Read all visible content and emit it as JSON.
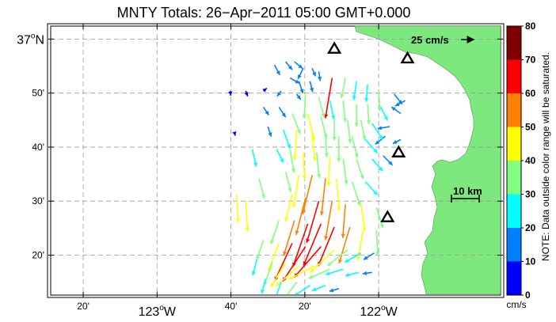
{
  "chart_data": {
    "type": "vector-field map",
    "title": "MNTY Totals: 26−Apr−2011 05:00 GMT+0.000",
    "x_ticks": [
      {
        "lon": -123.3333,
        "label": "20'",
        "major": false
      },
      {
        "lon": -123.0,
        "label": "123",
        "major": true
      },
      {
        "lon": -122.6667,
        "label": "40'",
        "major": false
      },
      {
        "lon": -122.3333,
        "label": "20'",
        "major": false
      },
      {
        "lon": -122.0,
        "label": "122",
        "major": true
      }
    ],
    "y_ticks": [
      {
        "lat": 37.0,
        "label": "37",
        "major": true
      },
      {
        "lat": 36.8333,
        "label": "50'",
        "major": false
      },
      {
        "lat": 36.6667,
        "label": "40'",
        "major": false
      },
      {
        "lat": 36.5,
        "label": "30'",
        "major": false
      },
      {
        "lat": 36.3333,
        "label": "20'",
        "major": false
      }
    ],
    "major_x_suffix": "W",
    "major_y_suffix": "N",
    "degree_symbol": "o",
    "xlim": [
      -123.48,
      -121.45
    ],
    "ylim": [
      36.21,
      37.04
    ],
    "grid": true,
    "scale_vector_label": "25 cm/s",
    "scale_vector_speed": 25,
    "distance_scale_label": "10 km",
    "distance_scale_km": 10,
    "colorbar": {
      "range": [
        0,
        80
      ],
      "ticks": [
        0,
        10,
        20,
        30,
        40,
        50,
        60,
        70,
        80
      ],
      "unit": "cm/s",
      "colors": [
        "#0000ff",
        "#0080ff",
        "#00ffff",
        "#80ff80",
        "#ffff00",
        "#ff8000",
        "#ff0000",
        "#800000"
      ],
      "note": "NOTE: Data outside color range will be saturated."
    },
    "radar_sites": [
      {
        "lon": -122.2,
        "lat": 36.97
      },
      {
        "lon": -121.87,
        "lat": 36.94
      },
      {
        "lon": -121.91,
        "lat": 36.65
      },
      {
        "lon": -121.96,
        "lat": 36.45
      }
    ],
    "vectors": [
      {
        "lon": -122.47,
        "lat": 36.92,
        "u": 8,
        "v": -15
      },
      {
        "lon": -122.42,
        "lat": 36.93,
        "u": 10,
        "v": -12
      },
      {
        "lon": -122.38,
        "lat": 36.93,
        "u": 12,
        "v": -10
      },
      {
        "lon": -122.34,
        "lat": 36.91,
        "u": -8,
        "v": -16
      },
      {
        "lon": -122.3,
        "lat": 36.91,
        "u": 5,
        "v": -12
      },
      {
        "lon": -122.27,
        "lat": 36.9,
        "u": 2,
        "v": -14
      },
      {
        "lon": -122.4,
        "lat": 36.88,
        "u": 14,
        "v": -8
      },
      {
        "lon": -122.36,
        "lat": 36.87,
        "u": 6,
        "v": -18
      },
      {
        "lon": -122.31,
        "lat": 36.87,
        "u": 4,
        "v": -16
      },
      {
        "lon": -122.21,
        "lat": 36.88,
        "u": -10,
        "v": -60
      },
      {
        "lon": -122.15,
        "lat": 36.88,
        "u": -6,
        "v": -30
      },
      {
        "lon": -122.1,
        "lat": 36.87,
        "u": -4,
        "v": -28
      },
      {
        "lon": -122.05,
        "lat": 36.86,
        "u": -2,
        "v": -26
      },
      {
        "lon": -122.0,
        "lat": 36.84,
        "u": 2,
        "v": -30
      },
      {
        "lon": -122.6,
        "lat": 36.84,
        "u": 3,
        "v": -8
      },
      {
        "lon": -122.52,
        "lat": 36.84,
        "u": 5,
        "v": 4
      },
      {
        "lon": -122.44,
        "lat": 36.84,
        "u": -6,
        "v": -8
      },
      {
        "lon": -122.37,
        "lat": 36.83,
        "u": 6,
        "v": -8
      },
      {
        "lon": -122.33,
        "lat": 36.83,
        "u": -2,
        "v": -36
      },
      {
        "lon": -122.27,
        "lat": 36.82,
        "u": 8,
        "v": -30
      },
      {
        "lon": -122.22,
        "lat": 36.81,
        "u": 6,
        "v": -28
      },
      {
        "lon": -122.16,
        "lat": 36.81,
        "u": 3,
        "v": -32
      },
      {
        "lon": -122.1,
        "lat": 36.8,
        "u": 0,
        "v": -34
      },
      {
        "lon": -122.05,
        "lat": 36.8,
        "u": 2,
        "v": -30
      },
      {
        "lon": -121.99,
        "lat": 36.79,
        "u": 10,
        "v": -20
      },
      {
        "lon": -121.93,
        "lat": 36.83,
        "u": 12,
        "v": -15
      },
      {
        "lon": -121.88,
        "lat": 36.81,
        "u": -15,
        "v": -8
      },
      {
        "lon": -121.9,
        "lat": 36.77,
        "u": -14,
        "v": 10
      },
      {
        "lon": -121.95,
        "lat": 36.73,
        "u": -18,
        "v": -3
      },
      {
        "lon": -121.9,
        "lat": 36.69,
        "u": -12,
        "v": -6
      },
      {
        "lon": -121.97,
        "lat": 36.7,
        "u": -15,
        "v": -12
      },
      {
        "lon": -122.52,
        "lat": 36.79,
        "u": 8,
        "v": -12
      },
      {
        "lon": -122.45,
        "lat": 36.79,
        "u": 10,
        "v": -15
      },
      {
        "lon": -122.39,
        "lat": 36.77,
        "u": 12,
        "v": -30
      },
      {
        "lon": -122.32,
        "lat": 36.77,
        "u": 10,
        "v": -40
      },
      {
        "lon": -122.26,
        "lat": 36.76,
        "u": 8,
        "v": -32
      },
      {
        "lon": -122.2,
        "lat": 36.76,
        "u": 0,
        "v": -35
      },
      {
        "lon": -122.14,
        "lat": 36.75,
        "u": 4,
        "v": -34
      },
      {
        "lon": -122.08,
        "lat": 36.75,
        "u": 6,
        "v": -30
      },
      {
        "lon": -122.03,
        "lat": 36.74,
        "u": 16,
        "v": -24
      },
      {
        "lon": -122.5,
        "lat": 36.73,
        "u": 5,
        "v": -15
      },
      {
        "lon": -122.43,
        "lat": 36.72,
        "u": 10,
        "v": -28
      },
      {
        "lon": -122.37,
        "lat": 36.72,
        "u": -3,
        "v": -45
      },
      {
        "lon": -122.3,
        "lat": 36.71,
        "u": 4,
        "v": -42
      },
      {
        "lon": -122.24,
        "lat": 36.71,
        "u": 2,
        "v": -36
      },
      {
        "lon": -122.18,
        "lat": 36.7,
        "u": 0,
        "v": -38
      },
      {
        "lon": -122.12,
        "lat": 36.7,
        "u": 8,
        "v": -32
      },
      {
        "lon": -122.06,
        "lat": 36.69,
        "u": 18,
        "v": -20
      },
      {
        "lon": -122.46,
        "lat": 36.66,
        "u": 10,
        "v": -20
      },
      {
        "lon": -122.4,
        "lat": 36.66,
        "u": 6,
        "v": -35
      },
      {
        "lon": -122.34,
        "lat": 36.65,
        "u": 2,
        "v": -40
      },
      {
        "lon": -122.28,
        "lat": 36.65,
        "u": 4,
        "v": -38
      },
      {
        "lon": -122.22,
        "lat": 36.64,
        "u": -2,
        "v": -45
      },
      {
        "lon": -122.16,
        "lat": 36.63,
        "u": 5,
        "v": -38
      },
      {
        "lon": -122.1,
        "lat": 36.63,
        "u": 10,
        "v": -30
      },
      {
        "lon": -122.03,
        "lat": 36.63,
        "u": 16,
        "v": -18
      },
      {
        "lon": -121.98,
        "lat": 36.64,
        "u": 14,
        "v": -14
      },
      {
        "lon": -122.64,
        "lat": 36.52,
        "u": 2,
        "v": -42
      },
      {
        "lon": -122.6,
        "lat": 36.5,
        "u": 3,
        "v": -45
      },
      {
        "lon": -122.42,
        "lat": 36.59,
        "u": 8,
        "v": -30
      },
      {
        "lon": -122.36,
        "lat": 36.58,
        "u": -8,
        "v": -48
      },
      {
        "lon": -122.3,
        "lat": 36.58,
        "u": -14,
        "v": -58
      },
      {
        "lon": -122.24,
        "lat": 36.57,
        "u": -6,
        "v": -55
      },
      {
        "lon": -122.19,
        "lat": 36.57,
        "u": 4,
        "v": -48
      },
      {
        "lon": -122.12,
        "lat": 36.56,
        "u": 12,
        "v": -36
      },
      {
        "lon": -122.06,
        "lat": 36.56,
        "u": 18,
        "v": -20
      },
      {
        "lon": -122.39,
        "lat": 36.52,
        "u": -10,
        "v": -40
      },
      {
        "lon": -122.33,
        "lat": 36.51,
        "u": -14,
        "v": -55
      },
      {
        "lon": -122.27,
        "lat": 36.5,
        "u": -18,
        "v": -62
      },
      {
        "lon": -122.21,
        "lat": 36.5,
        "u": -10,
        "v": -58
      },
      {
        "lon": -122.15,
        "lat": 36.49,
        "u": -4,
        "v": -50
      },
      {
        "lon": -122.08,
        "lat": 36.49,
        "u": 6,
        "v": -40
      },
      {
        "lon": -122.01,
        "lat": 36.48,
        "u": 10,
        "v": -30
      },
      {
        "lon": -122.45,
        "lat": 36.44,
        "u": -12,
        "v": -35
      },
      {
        "lon": -122.38,
        "lat": 36.44,
        "u": -16,
        "v": -52
      },
      {
        "lon": -122.32,
        "lat": 36.43,
        "u": -22,
        "v": -64
      },
      {
        "lon": -122.26,
        "lat": 36.43,
        "u": -26,
        "v": -62
      },
      {
        "lon": -122.2,
        "lat": 36.42,
        "u": -24,
        "v": -58
      },
      {
        "lon": -122.13,
        "lat": 36.42,
        "u": -16,
        "v": -54
      },
      {
        "lon": -122.07,
        "lat": 36.41,
        "u": -8,
        "v": -45
      },
      {
        "lon": -122.01,
        "lat": 36.41,
        "u": 2,
        "v": -38
      },
      {
        "lon": -122.52,
        "lat": 36.38,
        "u": -10,
        "v": -30
      },
      {
        "lon": -122.45,
        "lat": 36.37,
        "u": -16,
        "v": -42
      },
      {
        "lon": -122.39,
        "lat": 36.37,
        "u": -26,
        "v": -56
      },
      {
        "lon": -122.33,
        "lat": 36.36,
        "u": -34,
        "v": -52
      },
      {
        "lon": -122.26,
        "lat": 36.36,
        "u": -40,
        "v": -46
      },
      {
        "lon": -122.2,
        "lat": 36.35,
        "u": -36,
        "v": -34
      },
      {
        "lon": -122.14,
        "lat": 36.35,
        "u": -30,
        "v": -24
      },
      {
        "lon": -122.08,
        "lat": 36.34,
        "u": -24,
        "v": -14
      },
      {
        "lon": -122.02,
        "lat": 36.34,
        "u": -16,
        "v": -10
      },
      {
        "lon": -122.55,
        "lat": 36.32,
        "u": -6,
        "v": -24
      },
      {
        "lon": -122.48,
        "lat": 36.31,
        "u": -12,
        "v": -34
      },
      {
        "lon": -122.42,
        "lat": 36.31,
        "u": -22,
        "v": -36
      },
      {
        "lon": -122.36,
        "lat": 36.3,
        "u": -34,
        "v": -30
      },
      {
        "lon": -122.29,
        "lat": 36.3,
        "u": -38,
        "v": -20
      },
      {
        "lon": -122.22,
        "lat": 36.29,
        "u": -32,
        "v": -14
      },
      {
        "lon": -122.16,
        "lat": 36.29,
        "u": -26,
        "v": -8
      },
      {
        "lon": -122.09,
        "lat": 36.28,
        "u": -20,
        "v": -5
      },
      {
        "lon": -122.03,
        "lat": 36.28,
        "u": -14,
        "v": -2
      },
      {
        "lon": -122.51,
        "lat": 36.26,
        "u": -6,
        "v": -22
      },
      {
        "lon": -122.44,
        "lat": 36.25,
        "u": -10,
        "v": -28
      },
      {
        "lon": -122.37,
        "lat": 36.25,
        "u": -18,
        "v": -24
      },
      {
        "lon": -122.31,
        "lat": 36.24,
        "u": -24,
        "v": -16
      },
      {
        "lon": -122.24,
        "lat": 36.24,
        "u": -20,
        "v": -8
      },
      {
        "lon": -122.18,
        "lat": 36.23,
        "u": -14,
        "v": -4
      },
      {
        "lon": -122.67,
        "lat": 36.84,
        "u": 1,
        "v": -7
      },
      {
        "lon": -122.65,
        "lat": 36.71,
        "u": 1,
        "v": -4
      },
      {
        "lon": -122.57,
        "lat": 36.66,
        "u": 6,
        "v": -26
      },
      {
        "lon": -122.54,
        "lat": 36.57,
        "u": 8,
        "v": -30
      }
    ]
  }
}
